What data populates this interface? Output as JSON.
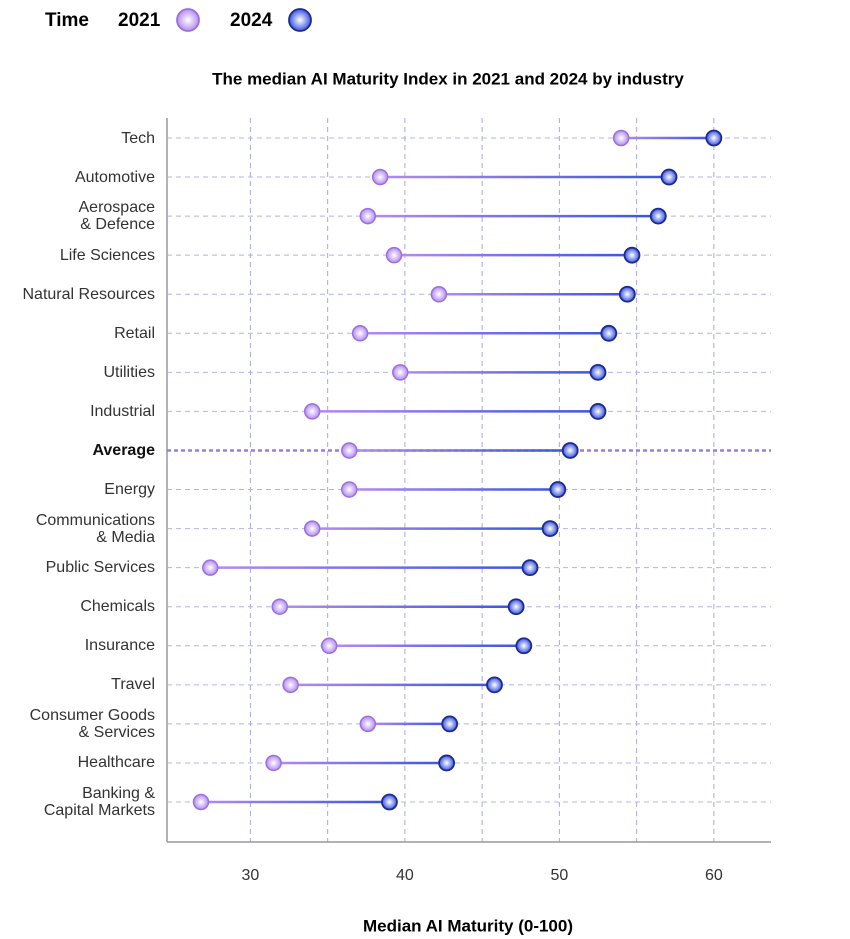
{
  "chart_data": {
    "type": "dumbbell",
    "title": "The median AI Maturity Index in 2021 and 2024 by industry",
    "x_label": "Median AI Maturity (0-100)",
    "legend_title": "Time",
    "categories": [
      "Tech",
      "Automotive",
      "Aerospace\n& Defence",
      "Life Sciences",
      "Natural Resources",
      "Retail",
      "Utilities",
      "Industrial",
      "Average",
      "Energy",
      "Communications\n& Media",
      "Public Services",
      "Chemicals",
      "Insurance",
      "Travel",
      "Consumer Goods\n& Services",
      "Healthcare",
      "Banking &\nCapital Markets"
    ],
    "series": [
      {
        "name": "2021",
        "color": "#b48cf0",
        "values": [
          54.0,
          38.4,
          37.6,
          39.3,
          42.2,
          37.1,
          39.7,
          34.0,
          36.4,
          36.4,
          34.0,
          27.4,
          31.9,
          35.1,
          32.6,
          37.6,
          31.5,
          26.8
        ]
      },
      {
        "name": "2024",
        "color": "#3a55e0",
        "values": [
          60.0,
          57.1,
          56.4,
          54.7,
          54.4,
          53.2,
          52.5,
          52.5,
          50.7,
          49.9,
          49.4,
          48.1,
          47.2,
          47.7,
          45.8,
          42.9,
          42.7,
          39.0
        ]
      }
    ],
    "highlight": "Average",
    "xlim": [
      24.6,
      63.7
    ],
    "xticks": [
      30,
      40,
      50,
      60
    ],
    "minor_xticks": [
      35,
      45,
      55
    ],
    "grid": true
  }
}
